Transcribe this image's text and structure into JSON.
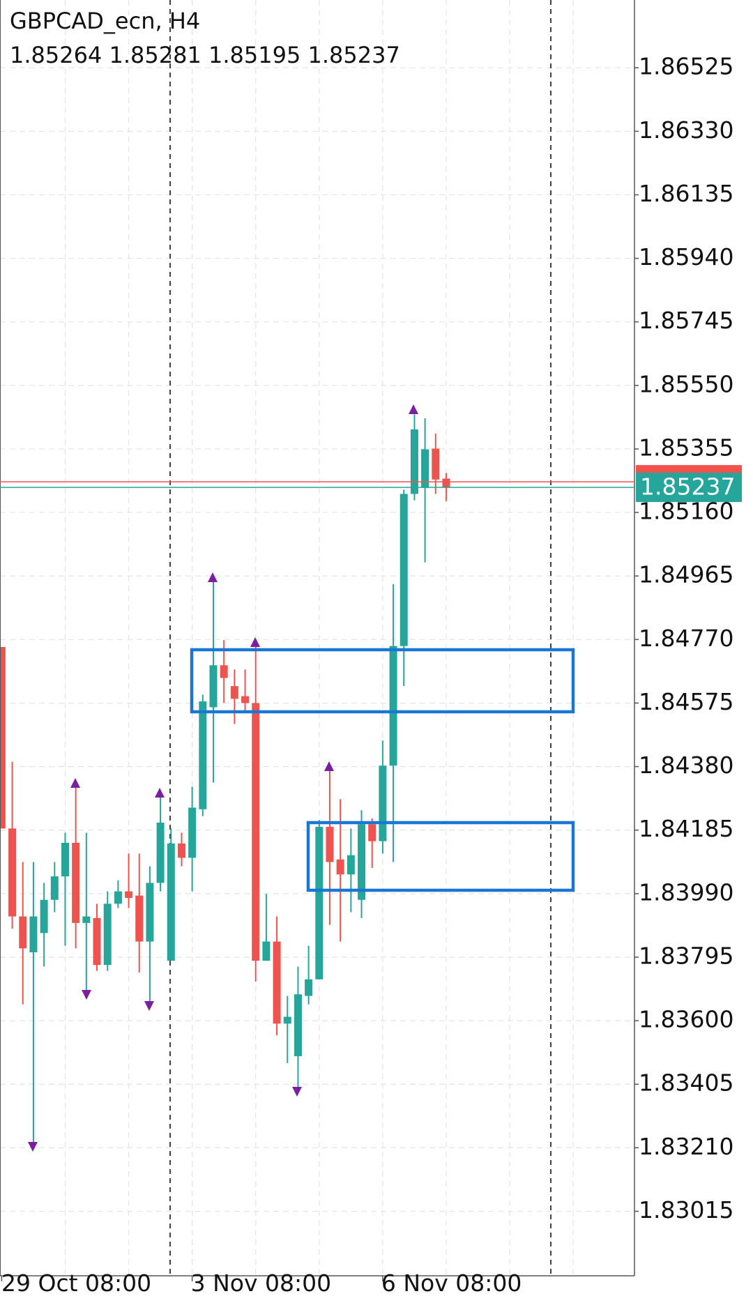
{
  "chart_data": {
    "type": "candlestick",
    "title": "GBPCAD_ecn, H4",
    "subtitle": "1.85264 1.85281 1.85195 1.85237",
    "categories": [
      "29 Oct 08:00",
      null,
      null,
      null,
      null,
      null,
      null,
      null,
      null,
      null,
      null,
      null,
      null,
      null,
      null,
      null,
      null,
      null,
      "3 Nov 08:00",
      null,
      null,
      null,
      null,
      null,
      null,
      null,
      null,
      null,
      null,
      null,
      null,
      null,
      null,
      null,
      null,
      null,
      "6 Nov 08:00",
      null,
      null,
      null,
      null,
      null,
      null
    ],
    "open": [
      1.84747,
      1.8419,
      1.8392,
      1.8381,
      1.83869,
      1.83971,
      1.84043,
      1.84146,
      1.839,
      1.83915,
      1.83771,
      1.83959,
      1.83997,
      1.83984,
      1.83843,
      1.84023,
      1.83784,
      1.84144,
      1.841,
      1.84249,
      1.84562,
      1.84691,
      1.84627,
      1.84596,
      1.84575,
      1.83784,
      1.83843,
      1.83591,
      1.83491,
      1.83676,
      1.83727,
      1.84195,
      1.84095,
      1.84049,
      1.83971,
      1.84203,
      1.84151,
      1.84383,
      1.8475,
      1.85217,
      1.85235,
      1.85356,
      1.85264
    ],
    "high": [
      1.84747,
      1.84395,
      1.84087,
      1.84087,
      1.84023,
      1.84087,
      1.84177,
      1.84331,
      1.84177,
      1.83959,
      1.83997,
      1.84031,
      1.84113,
      1.84113,
      1.84074,
      1.84305,
      1.8419,
      1.84177,
      1.84318,
      1.84601,
      1.8496,
      1.84768,
      1.84678,
      1.84678,
      1.84755,
      1.83989,
      1.8392,
      1.83676,
      1.83766,
      1.8383,
      1.84216,
      1.8437,
      1.8428,
      1.8419,
      1.84246,
      1.84221,
      1.8446,
      1.8494,
      1.8523,
      1.85461,
      1.85449,
      1.85402,
      1.85281
    ],
    "low": [
      1.8419,
      1.83882,
      1.8365,
      1.83214,
      1.83766,
      1.83933,
      1.8383,
      1.83822,
      1.83676,
      1.83753,
      1.83753,
      1.83946,
      1.83946,
      1.83748,
      1.8365,
      1.83997,
      1.83784,
      1.84074,
      1.83997,
      1.84228,
      1.84331,
      1.84575,
      1.84511,
      1.84549,
      1.8372,
      1.83784,
      1.83555,
      1.8347,
      1.83393,
      1.8365,
      1.83727,
      1.83894,
      1.83843,
      1.83933,
      1.83915,
      1.84069,
      1.84113,
      1.84087,
      1.84627,
      1.85197,
      1.85007,
      1.85217,
      1.85195
    ],
    "close": [
      1.8419,
      1.8392,
      1.83822,
      1.8392,
      1.83971,
      1.84043,
      1.84146,
      1.839,
      1.8392,
      1.83771,
      1.83959,
      1.83997,
      1.83977,
      1.83843,
      1.84023,
      1.84208,
      1.84144,
      1.841,
      1.84254,
      1.8458,
      1.84691,
      1.84652,
      1.84588,
      1.84575,
      1.83784,
      1.83843,
      1.83591,
      1.83612,
      1.83681,
      1.83727,
      1.84195,
      1.84087,
      1.84049,
      1.84108,
      1.84203,
      1.84151,
      1.84383,
      1.8475,
      1.85217,
      1.85415,
      1.85354,
      1.85261,
      1.85237
    ],
    "up_color": "#26a69a",
    "down_color": "#ef5350",
    "last_price": {
      "value": 1.85237,
      "label": "1.85237"
    },
    "ylim": [
      1.82817,
      1.86733
    ],
    "yticks": [
      1.86525,
      {
        "value": 1.8633,
        "label": "1.86330"
      },
      1.86135,
      {
        "value": 1.8594,
        "label": "1.85940"
      },
      1.85745,
      {
        "value": 1.8555,
        "label": "1.85550"
      },
      1.85355,
      {
        "value": 1.8516,
        "label": "1.85160"
      },
      1.84965,
      {
        "value": 1.8477,
        "label": "1.84770"
      },
      1.84575,
      {
        "value": 1.8438,
        "label": "1.84380"
      },
      1.84185,
      {
        "value": 1.8399,
        "label": "1.83990"
      },
      1.83795,
      {
        "value": 1.836,
        "label": "1.83600"
      },
      1.83405,
      {
        "value": 1.8321,
        "label": "1.83210"
      },
      1.83015
    ],
    "grid": true
  }
}
